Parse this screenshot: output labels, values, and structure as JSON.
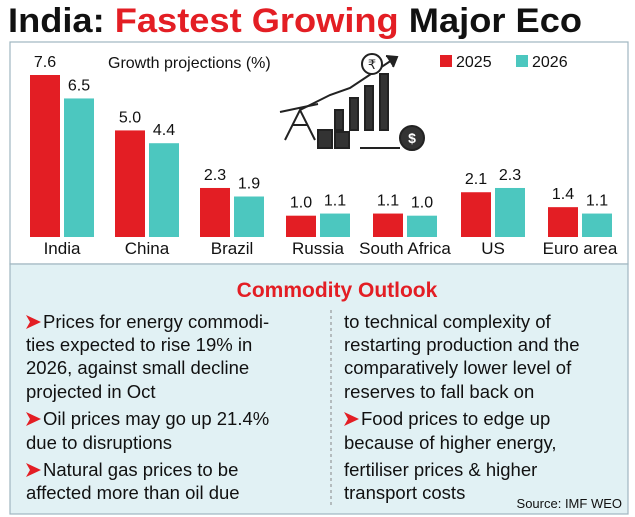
{
  "header": {
    "title_parts": [
      "India:",
      "Fastest Growing",
      "Major Eco"
    ]
  },
  "chart_data": {
    "type": "bar",
    "subtitle": "Growth projections (%)",
    "categories": [
      "India",
      "China",
      "Brazil",
      "Russia",
      "South Africa",
      "US",
      "Euro area"
    ],
    "series": [
      {
        "name": "2025",
        "color": "#e31e24",
        "values": [
          7.6,
          5.0,
          2.3,
          1.0,
          1.1,
          2.1,
          1.4
        ],
        "value_labels": [
          "7.6",
          "5.0",
          "2.3",
          "1.0",
          "1.1",
          "2.1",
          "1.4"
        ]
      },
      {
        "name": "2026",
        "color": "#4cc7bf",
        "values": [
          6.5,
          4.4,
          1.9,
          1.1,
          1.0,
          2.3,
          1.1
        ],
        "value_labels": [
          "6.5",
          "4.4",
          "1.9",
          "1.1",
          "1.0",
          "2.3",
          "1.1"
        ]
      }
    ]
  },
  "outlook": {
    "title": "Commodity Outlook",
    "left": [
      "Prices for energy commodi-",
      "ties expected to rise 19% in",
      "2026, against small decline",
      "projected in Oct",
      "Oil prices may go up 21.4%",
      "due to disruptions",
      "Natural gas prices to be",
      "affected more than oil due"
    ],
    "right": [
      "to technical complexity of",
      "restarting production and the",
      "comparatively lower level of",
      "reserves to fall back on",
      "Food prices to edge up",
      "because of higher energy,",
      "fertiliser prices & higher",
      "transport costs"
    ],
    "source": "Source: IMF WEO"
  }
}
